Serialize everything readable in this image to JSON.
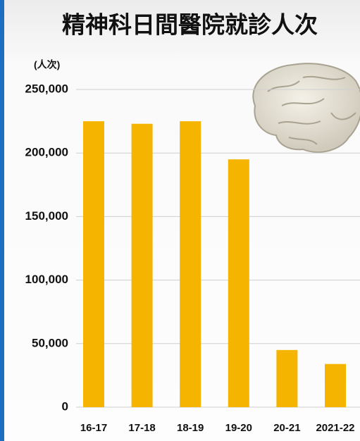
{
  "chart_data": {
    "type": "bar",
    "title": "精神科日間醫院就診人次",
    "y_label": "(人次)",
    "categories": [
      "16-17",
      "17-18",
      "18-19",
      "19-20",
      "20-21",
      "2021-22"
    ],
    "values": [
      225000,
      223000,
      225000,
      195000,
      45000,
      34000
    ],
    "color": "#f5b400",
    "ylim": [
      0,
      250000
    ],
    "yticks": [
      0,
      {
        "value": 50000,
        "label": "50,000"
      },
      {
        "value": 100000,
        "label": "100,000"
      },
      {
        "value": 150000,
        "label": "150,000"
      },
      {
        "value": 200000,
        "label": "200,000"
      },
      {
        "value": 250000,
        "label": "250,000"
      }
    ],
    "grid": true
  }
}
